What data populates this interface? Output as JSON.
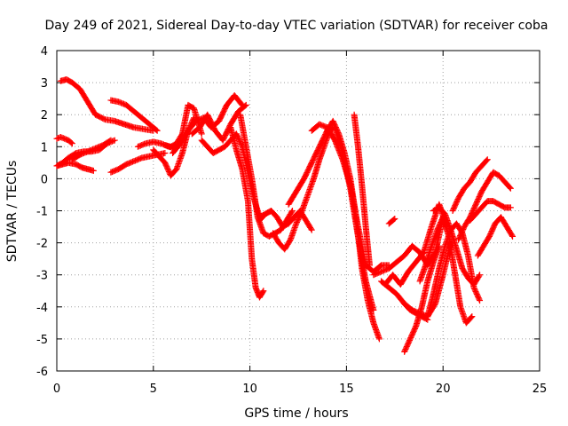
{
  "chart_data": {
    "type": "scatter",
    "title": "Day 249 of 2021, Sidereal Day-to-day VTEC variation (SDTVAR) for receiver coba",
    "xlabel": "GPS time / hours",
    "ylabel": "SDTVAR / TECUs",
    "xlim": [
      0,
      25
    ],
    "ylim": [
      -6,
      4
    ],
    "xticks": [
      0,
      5,
      10,
      15,
      20,
      25
    ],
    "yticks": [
      -6,
      -5,
      -4,
      -3,
      -2,
      -1,
      0,
      1,
      2,
      3,
      4
    ],
    "grid": true,
    "legend": "none",
    "marker": "plus",
    "color": "#ff0000",
    "series": [
      {
        "x": [
          0.0,
          0.2,
          0.4,
          0.6,
          0.8
        ],
        "y": [
          1.25,
          1.3,
          1.25,
          1.2,
          1.1
        ]
      },
      {
        "x": [
          0.0,
          0.3,
          0.6,
          1.0,
          1.4,
          1.8,
          2.2,
          2.6,
          3.0
        ],
        "y": [
          0.4,
          0.5,
          0.65,
          0.8,
          0.85,
          0.85,
          0.9,
          1.1,
          1.2
        ]
      },
      {
        "x": [
          0.0,
          0.3,
          0.6,
          1.0,
          1.3,
          1.6,
          1.9
        ],
        "y": [
          0.4,
          0.45,
          0.5,
          0.45,
          0.35,
          0.3,
          0.25
        ]
      },
      {
        "x": [
          0.2,
          0.5,
          0.8,
          1.2,
          1.6,
          2.0,
          2.5,
          3.0,
          3.5,
          4.0,
          4.5,
          5.0
        ],
        "y": [
          3.05,
          3.1,
          3.0,
          2.8,
          2.4,
          2.0,
          1.85,
          1.8,
          1.7,
          1.6,
          1.55,
          1.5
        ]
      },
      {
        "x": [
          0.8,
          1.2,
          1.6,
          2.0,
          2.4,
          2.8
        ],
        "y": [
          0.6,
          0.75,
          0.85,
          0.95,
          1.05,
          1.2
        ]
      },
      {
        "x": [
          2.8,
          3.2,
          3.6,
          4.0,
          4.4,
          4.8,
          5.2
        ],
        "y": [
          2.45,
          2.4,
          2.3,
          2.1,
          1.9,
          1.7,
          1.5
        ]
      },
      {
        "x": [
          2.8,
          3.2,
          3.6,
          4.0,
          4.4,
          4.8,
          5.2,
          5.6
        ],
        "y": [
          0.2,
          0.3,
          0.45,
          0.55,
          0.65,
          0.7,
          0.75,
          0.8
        ]
      },
      {
        "x": [
          4.2,
          4.6,
          5.0,
          5.4,
          5.8,
          6.2
        ],
        "y": [
          1.0,
          1.1,
          1.15,
          1.1,
          1.0,
          0.95
        ]
      },
      {
        "x": [
          5.0,
          5.3,
          5.6,
          5.9,
          6.2,
          6.5,
          6.8,
          7.1
        ],
        "y": [
          0.9,
          0.7,
          0.5,
          0.1,
          0.3,
          0.8,
          1.5,
          1.9
        ]
      },
      {
        "x": [
          5.6,
          5.9,
          6.2,
          6.5,
          6.8,
          7.1,
          7.5
        ],
        "y": [
          1.05,
          1.0,
          1.1,
          1.4,
          2.3,
          2.2,
          1.4
        ]
      },
      {
        "x": [
          6.0,
          6.4,
          6.8,
          7.2,
          7.6,
          8.0,
          8.4,
          8.8,
          9.2,
          9.6
        ],
        "y": [
          0.8,
          1.1,
          1.5,
          1.8,
          1.9,
          1.6,
          1.8,
          2.3,
          2.6,
          2.3
        ]
      },
      {
        "x": [
          7.0,
          7.4,
          7.8,
          8.2,
          8.6,
          9.0,
          9.4,
          9.8
        ],
        "y": [
          1.4,
          1.6,
          2.0,
          1.5,
          1.2,
          1.7,
          2.1,
          2.3
        ]
      },
      {
        "x": [
          7.5,
          7.8,
          8.1,
          8.4,
          8.7,
          9.0,
          9.3,
          9.6,
          9.9,
          10.2,
          10.5,
          10.8,
          11.1
        ],
        "y": [
          1.2,
          1.0,
          0.8,
          0.9,
          1.0,
          1.2,
          1.4,
          1.0,
          0.2,
          -0.6,
          -1.2,
          -1.1,
          -1.0
        ]
      },
      {
        "x": [
          9.0,
          9.3,
          9.6,
          9.9,
          10.1,
          10.3,
          10.5,
          10.7
        ],
        "y": [
          1.6,
          0.9,
          0.3,
          -0.7,
          -2.5,
          -3.4,
          -3.7,
          -3.5
        ]
      },
      {
        "x": [
          9.5,
          9.8,
          10.1,
          10.4,
          10.7,
          11.0,
          11.3,
          11.6,
          11.9,
          12.2
        ],
        "y": [
          2.0,
          1.0,
          0.0,
          -1.2,
          -1.7,
          -1.8,
          -1.7,
          -1.6,
          -1.3,
          -1.0
        ]
      },
      {
        "x": [
          10.5,
          10.8,
          11.1,
          11.4,
          11.7,
          12.0,
          12.3,
          12.6,
          12.9,
          13.2
        ],
        "y": [
          -1.3,
          -1.1,
          -1.0,
          -1.2,
          -1.5,
          -1.4,
          -1.2,
          -1.0,
          -1.3,
          -1.6
        ]
      },
      {
        "x": [
          11.2,
          11.5,
          11.8,
          12.1,
          12.4,
          12.7,
          13.0,
          13.3,
          13.6,
          13.9,
          14.2
        ],
        "y": [
          -1.7,
          -2.0,
          -2.2,
          -1.9,
          -1.4,
          -1.0,
          -0.5,
          0.0,
          0.6,
          1.1,
          1.6
        ]
      },
      {
        "x": [
          12.0,
          12.4,
          12.8,
          13.2,
          13.6,
          14.0,
          14.4,
          14.8,
          15.2,
          15.6,
          16.0,
          16.4
        ],
        "y": [
          -0.8,
          -0.4,
          0.0,
          0.5,
          1.0,
          1.5,
          1.6,
          0.8,
          -0.3,
          -1.8,
          -3.2,
          -4.1
        ]
      },
      {
        "x": [
          13.2,
          13.6,
          14.0,
          14.4,
          14.8,
          15.2,
          15.6,
          16.0,
          16.4,
          16.8,
          17.2
        ],
        "y": [
          1.5,
          1.7,
          1.6,
          1.2,
          0.6,
          -0.2,
          -1.5,
          -2.7,
          -2.9,
          -2.7,
          -2.7
        ]
      },
      {
        "x": [
          14.0,
          14.3,
          14.6,
          14.9,
          15.2,
          15.5,
          15.8,
          16.1,
          16.4,
          16.7
        ],
        "y": [
          1.5,
          1.8,
          1.4,
          0.8,
          0.0,
          -1.2,
          -2.8,
          -3.8,
          -4.5,
          -5.0
        ]
      },
      {
        "x": [
          15.4,
          15.6,
          15.8,
          16.0,
          16.2
        ],
        "y": [
          2.0,
          1.0,
          -0.2,
          -1.5,
          -2.7
        ]
      },
      {
        "x": [
          17.2,
          17.5
        ],
        "y": [
          -1.4,
          -1.25
        ]
      },
      {
        "x": [
          16.4,
          16.8,
          17.2,
          17.6,
          18.0,
          18.4,
          18.8,
          19.2,
          19.6,
          20.0
        ],
        "y": [
          -3.0,
          -2.9,
          -2.8,
          -2.6,
          -2.4,
          -2.1,
          -2.3,
          -2.7,
          -2.3,
          -1.2
        ]
      },
      {
        "x": [
          16.8,
          17.2,
          17.6,
          18.0,
          18.4,
          18.8,
          19.2,
          19.6,
          20.0,
          20.4
        ],
        "y": [
          -3.2,
          -3.4,
          -3.6,
          -3.9,
          -4.1,
          -4.2,
          -4.3,
          -3.9,
          -3.0,
          -2.0
        ]
      },
      {
        "x": [
          17.0,
          17.4,
          17.8,
          18.2,
          18.6,
          19.0,
          19.4,
          19.8,
          20.2
        ],
        "y": [
          -3.3,
          -3.0,
          -3.3,
          -2.9,
          -2.6,
          -2.3,
          -1.5,
          -0.8,
          -1.5
        ]
      },
      {
        "x": [
          18.0,
          18.3,
          18.6,
          18.9,
          19.2,
          19.5,
          19.8
        ],
        "y": [
          -5.4,
          -5.0,
          -4.6,
          -4.0,
          -3.2,
          -2.6,
          -2.1
        ]
      },
      {
        "x": [
          18.0,
          18.3,
          18.6,
          18.9,
          19.2
        ],
        "y": [
          -3.9,
          -4.1,
          -4.2,
          -4.3,
          -4.4
        ]
      },
      {
        "x": [
          18.8,
          19.1,
          19.4,
          19.7,
          20.0,
          20.3,
          20.6,
          20.9,
          21.2,
          21.5
        ],
        "y": [
          -3.2,
          -2.7,
          -2.1,
          -1.6,
          -1.2,
          -1.8,
          -2.9,
          -4.0,
          -4.5,
          -4.3
        ]
      },
      {
        "x": [
          19.2,
          19.5,
          19.8,
          20.1,
          20.4,
          20.7,
          21.0,
          21.3,
          21.6,
          21.9
        ],
        "y": [
          -4.3,
          -3.6,
          -2.8,
          -2.1,
          -1.6,
          -1.4,
          -1.7,
          -2.4,
          -3.4,
          -3.8
        ]
      },
      {
        "x": [
          19.5,
          19.8,
          20.1,
          20.4,
          20.7,
          21.0,
          21.3,
          21.6,
          21.9
        ],
        "y": [
          -1.0,
          -0.9,
          -1.1,
          -1.6,
          -2.2,
          -2.8,
          -3.1,
          -3.3,
          -3.0
        ]
      },
      {
        "x": [
          20.5,
          20.8,
          21.1,
          21.4,
          21.7,
          22.0,
          22.3
        ],
        "y": [
          -1.0,
          -0.6,
          -0.3,
          -0.1,
          0.2,
          0.4,
          0.6
        ]
      },
      {
        "x": [
          20.8,
          21.1,
          21.4,
          21.7,
          22.0,
          22.3,
          22.6,
          22.9,
          23.2,
          23.5
        ],
        "y": [
          -1.9,
          -1.5,
          -1.2,
          -0.8,
          -0.4,
          -0.1,
          0.2,
          0.1,
          -0.1,
          -0.3
        ]
      },
      {
        "x": [
          21.4,
          21.7,
          22.0,
          22.3,
          22.6,
          22.9,
          23.2,
          23.5
        ],
        "y": [
          -1.3,
          -1.1,
          -0.9,
          -0.7,
          -0.7,
          -0.8,
          -0.9,
          -0.9
        ]
      },
      {
        "x": [
          21.8,
          22.1,
          22.4,
          22.7,
          23.0,
          23.3,
          23.6
        ],
        "y": [
          -2.4,
          -2.1,
          -1.8,
          -1.4,
          -1.2,
          -1.5,
          -1.8
        ]
      }
    ]
  }
}
